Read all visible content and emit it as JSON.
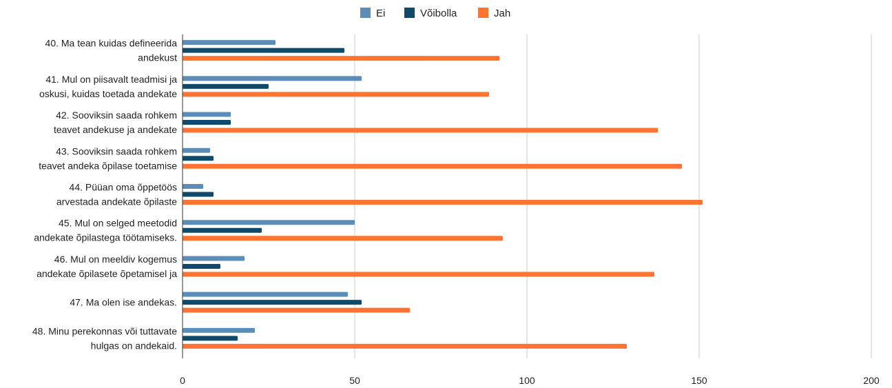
{
  "chart_data": {
    "type": "bar",
    "orientation": "horizontal",
    "title": "",
    "xlabel": "",
    "ylabel": "",
    "xlim": [
      0,
      200
    ],
    "x_ticks": [
      0,
      50,
      100,
      150,
      200
    ],
    "grid": true,
    "legend_position": "top-center",
    "categories": [
      [
        "40. Ma tean kuidas defineerida",
        "andekust"
      ],
      [
        "41. Mul on piisavalt teadmisi ja",
        "oskusi, kuidas toetada andekate"
      ],
      [
        "42. Sooviksin saada rohkem",
        "teavet andekuse ja andekate"
      ],
      [
        "43. Sooviksin saada rohkem",
        "teavet andeka õpilase toetamise"
      ],
      [
        "44. Püüan oma õppetöös",
        "arvestada andekate õpilaste"
      ],
      [
        "45. Mul on selged meetodid",
        "andekate õpilastega töötamiseks."
      ],
      [
        "46. Mul on meeldiv kogemus",
        "andekate õpilasete õpetamisel ja"
      ],
      [
        "47. Ma olen ise andekas."
      ],
      [
        "48. Minu perekonnas või tuttavate",
        "hulgas on andekaid."
      ]
    ],
    "series": [
      {
        "name": "Ei",
        "color": "#5b8db8",
        "values": [
          27,
          52,
          14,
          8,
          6,
          50,
          18,
          48,
          21
        ]
      },
      {
        "name": "Võibolla",
        "color": "#0f4a6b",
        "values": [
          47,
          25,
          14,
          9,
          9,
          23,
          11,
          52,
          16
        ]
      },
      {
        "name": "Jah",
        "color": "#ff7433",
        "values": [
          92,
          89,
          138,
          145,
          151,
          93,
          137,
          66,
          129
        ]
      }
    ]
  }
}
